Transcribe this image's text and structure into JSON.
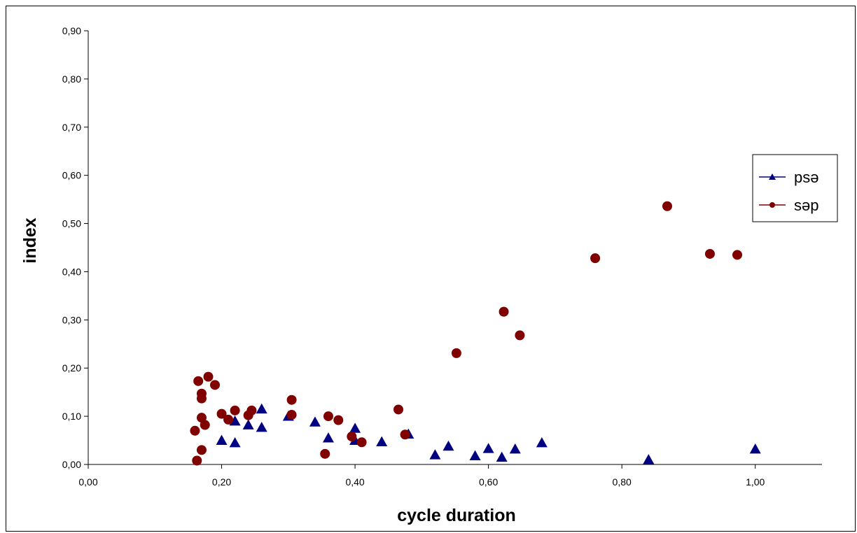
{
  "chart_data": {
    "type": "scatter",
    "xlabel": "cycle duration",
    "ylabel": "index",
    "xlim": [
      0,
      1.1
    ],
    "ylim": [
      0,
      0.9
    ],
    "x_ticks": [
      "0,00",
      "0,20",
      "0,40",
      "0,60",
      "0,80",
      "1,00"
    ],
    "y_ticks": [
      "0,00",
      "0,10",
      "0,20",
      "0,30",
      "0,40",
      "0,50",
      "0,60",
      "0,70",
      "0,80",
      "0,90"
    ],
    "grid": false,
    "legend_position": "right",
    "series": [
      {
        "name": "psə",
        "marker": "triangle",
        "color": "#000080",
        "points": [
          [
            0.2,
            0.05
          ],
          [
            0.22,
            0.09
          ],
          [
            0.22,
            0.045
          ],
          [
            0.24,
            0.082
          ],
          [
            0.26,
            0.115
          ],
          [
            0.26,
            0.077
          ],
          [
            0.3,
            0.1
          ],
          [
            0.34,
            0.088
          ],
          [
            0.36,
            0.055
          ],
          [
            0.4,
            0.075
          ],
          [
            0.4,
            0.05
          ],
          [
            0.44,
            0.047
          ],
          [
            0.48,
            0.063
          ],
          [
            0.52,
            0.02
          ],
          [
            0.54,
            0.038
          ],
          [
            0.58,
            0.018
          ],
          [
            0.6,
            0.033
          ],
          [
            0.62,
            0.015
          ],
          [
            0.64,
            0.032
          ],
          [
            0.68,
            0.045
          ],
          [
            0.84,
            0.01
          ],
          [
            1.0,
            0.032
          ]
        ]
      },
      {
        "name": "səp",
        "marker": "circle",
        "color": "#800000",
        "points": [
          [
            0.16,
            0.07
          ],
          [
            0.163,
            0.008
          ],
          [
            0.165,
            0.173
          ],
          [
            0.17,
            0.147
          ],
          [
            0.17,
            0.137
          ],
          [
            0.17,
            0.097
          ],
          [
            0.17,
            0.03
          ],
          [
            0.175,
            0.082
          ],
          [
            0.18,
            0.182
          ],
          [
            0.19,
            0.165
          ],
          [
            0.2,
            0.105
          ],
          [
            0.21,
            0.093
          ],
          [
            0.22,
            0.112
          ],
          [
            0.24,
            0.102
          ],
          [
            0.245,
            0.112
          ],
          [
            0.305,
            0.134
          ],
          [
            0.305,
            0.103
          ],
          [
            0.355,
            0.022
          ],
          [
            0.36,
            0.1
          ],
          [
            0.375,
            0.092
          ],
          [
            0.395,
            0.058
          ],
          [
            0.41,
            0.046
          ],
          [
            0.465,
            0.114
          ],
          [
            0.475,
            0.062
          ],
          [
            0.552,
            0.231
          ],
          [
            0.623,
            0.317
          ],
          [
            0.647,
            0.268
          ],
          [
            0.76,
            0.428
          ],
          [
            0.868,
            0.536
          ],
          [
            0.932,
            0.437
          ],
          [
            0.973,
            0.435
          ]
        ]
      }
    ]
  }
}
